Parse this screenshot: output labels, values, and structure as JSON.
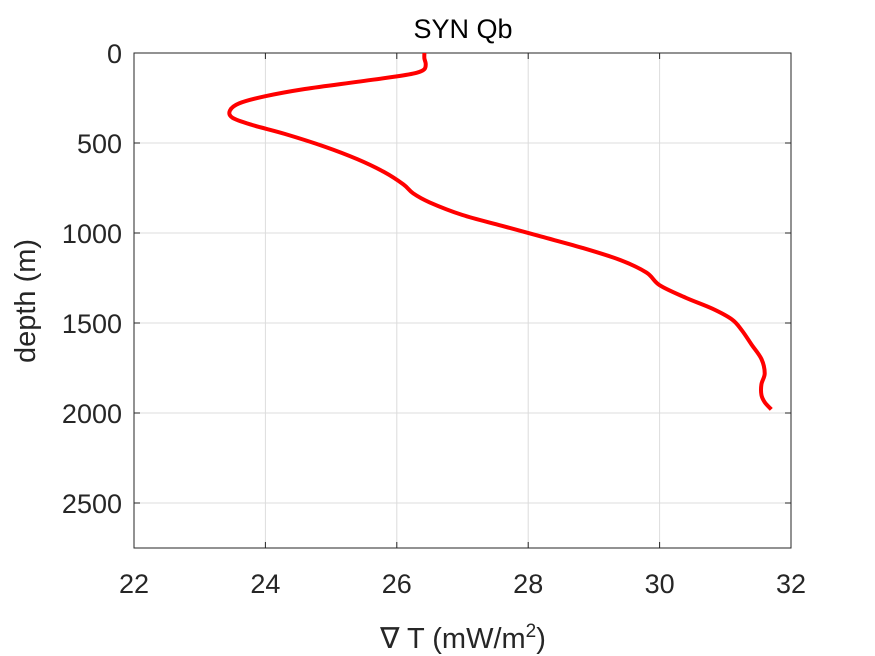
{
  "chart_data": {
    "type": "line",
    "title": "SYN Qb",
    "xlabel": "∇ T (mW/m",
    "xlabel_superscript": "2",
    "xlabel_suffix": ")",
    "ylabel": "depth (m)",
    "xlim": [
      22,
      32
    ],
    "ylim": [
      0,
      2750
    ],
    "y_reversed": true,
    "grid": true,
    "x_ticks": [
      22,
      24,
      26,
      28,
      30,
      32
    ],
    "y_ticks": [
      0,
      500,
      1000,
      1500,
      2000,
      2500
    ],
    "series": [
      {
        "color": "#ff0000",
        "x": [
          26.42,
          26.42,
          26.44,
          26.42,
          26.3,
          26.0,
          25.4,
          24.6,
          24.0,
          23.6,
          23.46,
          23.5,
          23.8,
          24.3,
          24.9,
          25.4,
          25.8,
          26.1,
          26.25,
          26.5,
          27.0,
          27.6,
          28.2,
          28.8,
          29.4,
          29.8,
          30.0,
          30.4,
          30.8,
          31.1,
          31.25,
          31.4,
          31.55,
          31.6,
          31.55,
          31.55,
          31.6,
          31.7
        ],
        "y": [
          0,
          30,
          60,
          90,
          110,
          130,
          160,
          200,
          240,
          280,
          320,
          360,
          400,
          450,
          520,
          590,
          660,
          730,
          780,
          830,
          900,
          960,
          1020,
          1080,
          1150,
          1220,
          1290,
          1360,
          1420,
          1480,
          1540,
          1620,
          1700,
          1780,
          1840,
          1900,
          1940,
          1980
        ]
      }
    ]
  }
}
